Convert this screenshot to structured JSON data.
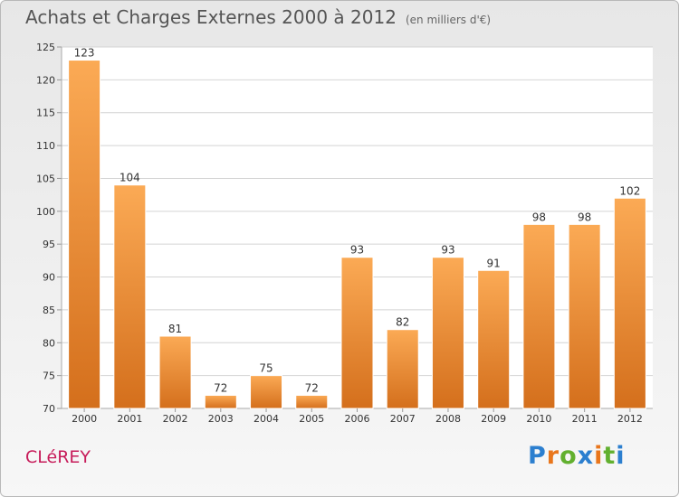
{
  "title": "Achats et Charges Externes 2000 à 2012",
  "unit_note": "(en milliers d'€)",
  "commune": "CLéREY",
  "brand": {
    "text": "Proxiti",
    "letter_colors": [
      "#2c7fcf",
      "#e9761c",
      "#62b02f",
      "#2c7fcf",
      "#e9761c",
      "#62b02f",
      "#2c7fcf"
    ]
  },
  "colors": {
    "bar_light": "#fbaa55",
    "bar_dark": "#d46f1c",
    "grid": "#d4d4d4",
    "axis_text": "#333333"
  },
  "chart_data": {
    "type": "bar",
    "categories": [
      "2000",
      "2001",
      "2002",
      "2003",
      "2004",
      "2005",
      "2006",
      "2007",
      "2008",
      "2009",
      "2010",
      "2011",
      "2012"
    ],
    "values": [
      123,
      104,
      81,
      72,
      75,
      72,
      93,
      82,
      93,
      91,
      98,
      98,
      102
    ],
    "ylim": [
      70,
      125
    ],
    "yticks": [
      70,
      75,
      80,
      85,
      90,
      95,
      100,
      105,
      110,
      115,
      120,
      125
    ],
    "grid": true,
    "data_labels": true
  }
}
